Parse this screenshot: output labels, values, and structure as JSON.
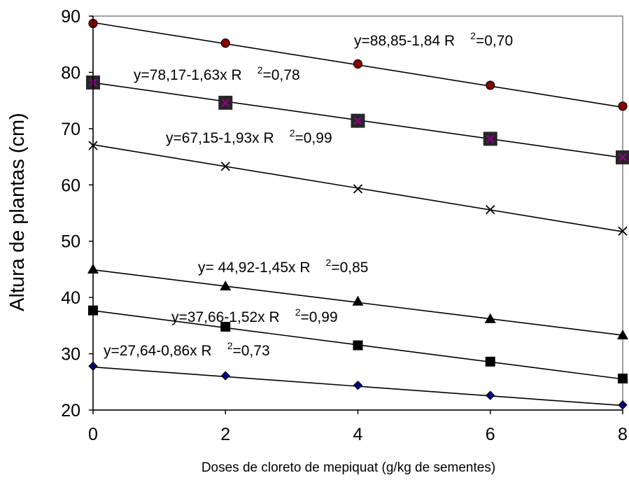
{
  "chart_data": {
    "type": "scatter",
    "title": "",
    "xlabel": "Doses de cloreto de mepiquat (g/kg de sementes)",
    "ylabel": "Altura de plantas (cm)",
    "xlim": [
      0,
      8
    ],
    "ylim": [
      20,
      90
    ],
    "x_ticks": [
      "0",
      "2",
      "4",
      "6",
      "8"
    ],
    "y_ticks": [
      "20",
      "30",
      "40",
      "50",
      "60",
      "70",
      "80",
      "90"
    ],
    "grid": false,
    "legend": "none",
    "x": [
      0,
      2,
      4,
      6,
      8
    ],
    "series": [
      {
        "marker": "circle",
        "marker_color": "#8b0000",
        "values": [
          88.7,
          85.2,
          81.5,
          77.7,
          74.0
        ],
        "trend": [
          88.85,
          73.8
        ],
        "equation": "y=88,85-1,84 R",
        "r2_sup": "2",
        "r2_value": "=0,70"
      },
      {
        "marker": "square-x",
        "marker_color": "#8b008b",
        "values": [
          78.2,
          74.6,
          71.4,
          68.2,
          64.9
        ],
        "trend": [
          78.17,
          64.85
        ],
        "equation": "y=78,17-1,63x R",
        "r2_sup": "2",
        "r2_value": "=0,78"
      },
      {
        "marker": "x",
        "marker_color": "#000000",
        "values": [
          67.0,
          63.3,
          59.3,
          55.6,
          51.8
        ],
        "trend": [
          67.15,
          51.7
        ],
        "equation": "y=67,15-1,93x R",
        "r2_sup": "2",
        "r2_value": "=0,99"
      },
      {
        "marker": "triangle",
        "marker_color": "#000000",
        "values": [
          45.0,
          42.0,
          39.3,
          36.2,
          33.3
        ],
        "trend": [
          44.92,
          33.3
        ],
        "equation": "y= 44,92-1,45x R",
        "r2_sup": "2",
        "r2_value": "=0,85"
      },
      {
        "marker": "square",
        "marker_color": "#000000",
        "values": [
          37.7,
          34.8,
          31.5,
          28.6,
          25.6
        ],
        "trend": [
          37.66,
          25.5
        ],
        "equation": "y=37,66-1,52x R",
        "r2_sup": "2",
        "r2_value": "=0,99"
      },
      {
        "marker": "diamond",
        "marker_color": "#000080",
        "values": [
          27.8,
          26.1,
          24.4,
          22.6,
          20.9
        ],
        "trend": [
          27.64,
          20.8
        ],
        "equation": "y=27,64-0,86x R",
        "r2_sup": "2",
        "r2_value": "=0,73"
      }
    ]
  }
}
